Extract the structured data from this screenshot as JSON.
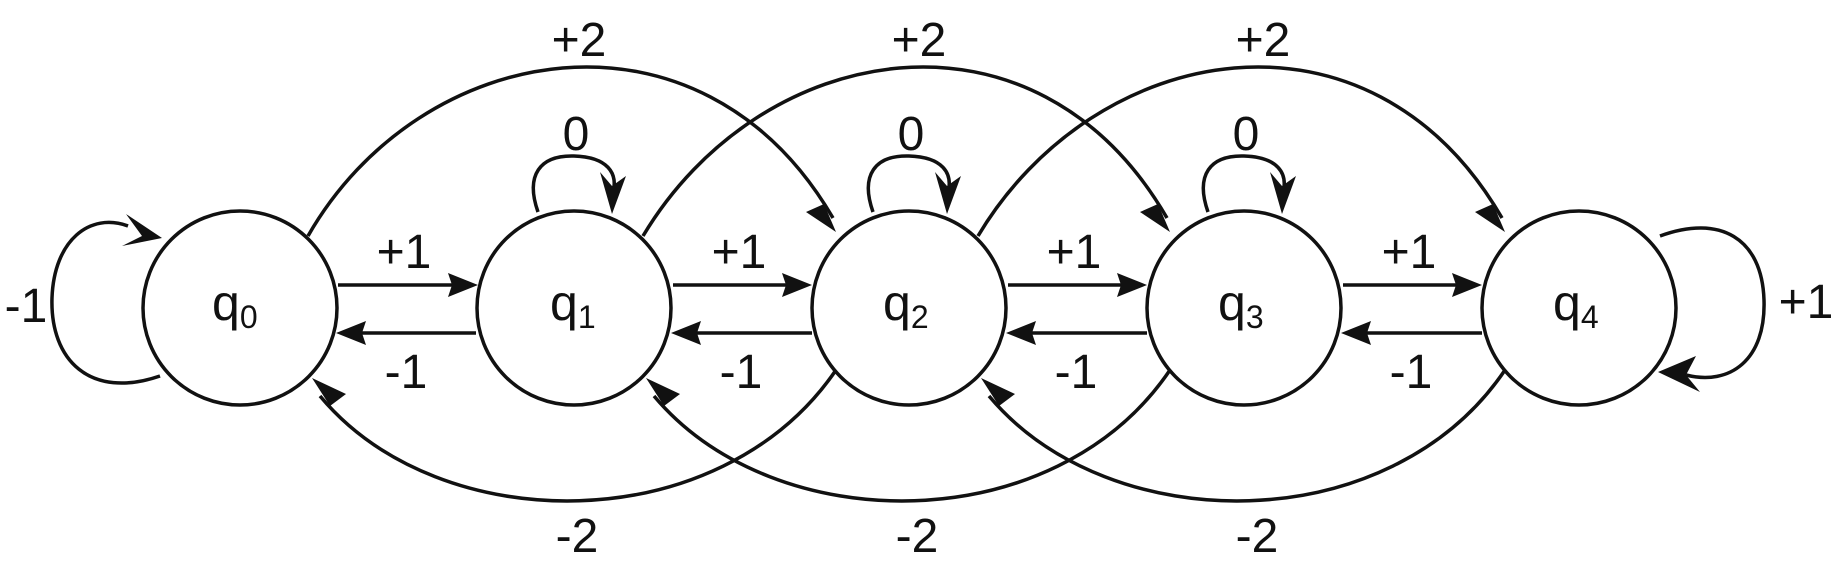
{
  "states": [
    {
      "id": "q0",
      "base": "q",
      "sub": "0"
    },
    {
      "id": "q1",
      "base": "q",
      "sub": "1"
    },
    {
      "id": "q2",
      "base": "q",
      "sub": "2"
    },
    {
      "id": "q3",
      "base": "q",
      "sub": "3"
    },
    {
      "id": "q4",
      "base": "q",
      "sub": "4"
    }
  ],
  "edges": {
    "self_q0": "-1",
    "self_q1": "0",
    "self_q2": "0",
    "self_q3": "0",
    "self_q4": "+1",
    "q0_q1": "+1",
    "q1_q2": "+1",
    "q2_q3": "+1",
    "q3_q4": "+1",
    "q1_q0": "-1",
    "q2_q1": "-1",
    "q3_q2": "-1",
    "q4_q3": "-1",
    "q0_q2": "+2",
    "q1_q3": "+2",
    "q2_q4": "+2",
    "q2_q0": "-2",
    "q3_q1": "-2",
    "q4_q2": "-2"
  },
  "colors": {
    "stroke": "#111111",
    "background": "#ffffff"
  }
}
